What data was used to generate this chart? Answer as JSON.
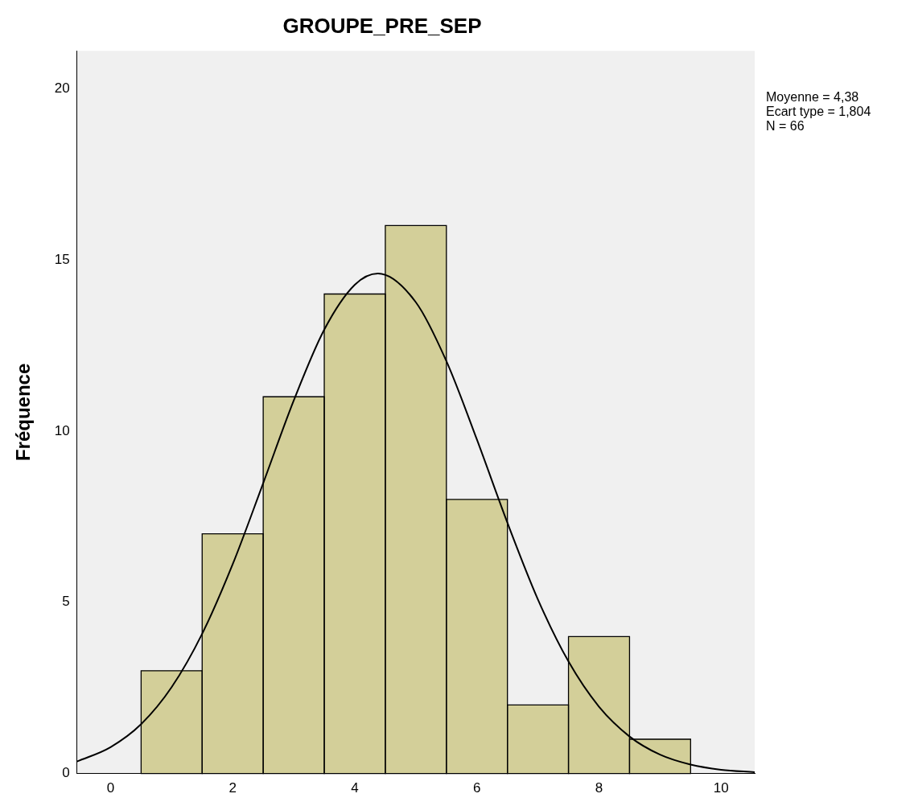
{
  "chart_data": {
    "type": "histogram",
    "title": "GROUPE_PRE_SEP",
    "ylabel": "Fréquence",
    "bins": [
      0.5,
      1.5,
      2.5,
      3.5,
      4.5,
      5.5,
      6.5,
      7.5,
      8.5,
      9.5
    ],
    "values": [
      3,
      7,
      11,
      14,
      16,
      8,
      2,
      4,
      1
    ],
    "color": "#d3cf99",
    "series": [
      {
        "type": "line",
        "color": "#000000",
        "x": [
          -0.55,
          0,
          0.5,
          1,
          1.5,
          2,
          2.5,
          3,
          3.5,
          4,
          4.38,
          5,
          5.5,
          6,
          6.5,
          7,
          7.5,
          8,
          8.5,
          9,
          9.5,
          10,
          10.55
        ],
        "values": [
          0.35,
          0.77,
          1.44,
          2.52,
          4.08,
          6.11,
          8.48,
          10.89,
          12.96,
          14.27,
          14.6,
          13.76,
          12.04,
          9.75,
          7.32,
          5.08,
          3.27,
          1.95,
          1.08,
          0.55,
          0.26,
          0.11,
          0.04
        ]
      }
    ],
    "xlim": [
      -0.55,
      10.55
    ],
    "xticks": [
      0,
      2,
      4,
      6,
      8,
      10
    ],
    "ylim": [
      0,
      21.1
    ],
    "yticks": [
      0,
      5,
      10,
      15,
      20
    ],
    "grid": false,
    "legend": false,
    "annotations": [
      "Moyenne = 4,38",
      "Ecart type = 1,804",
      "N = 66"
    ]
  }
}
